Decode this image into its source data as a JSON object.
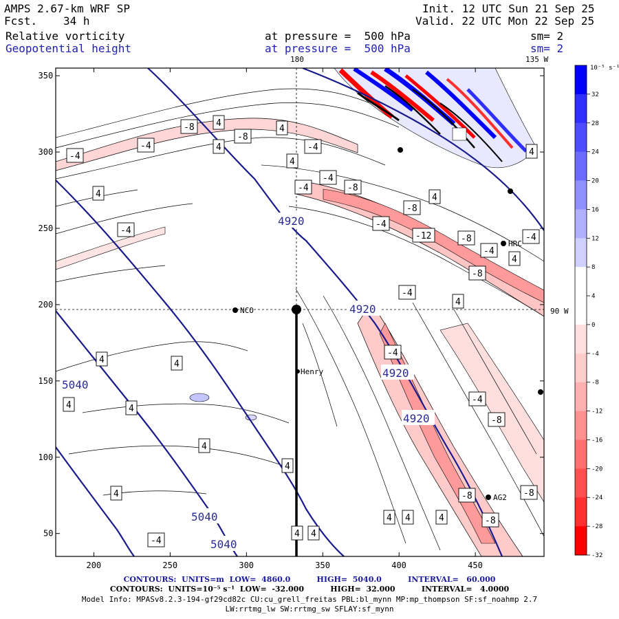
{
  "header": {
    "model": "AMPS 2.67-km WRF SP",
    "fcst_label": "Fcst.",
    "fcst_value": "34 h",
    "init": "Init. 12 UTC Sun 21 Sep 25",
    "valid": "Valid. 22 UTC Mon 22 Sep 25",
    "field1": "Relative vorticity",
    "field2": "Geopotential height",
    "pressure1": "at pressure =  500 hPa",
    "pressure2": "at pressure =  500 hPa",
    "sm1": "sm= 2",
    "sm2": "sm= 2"
  },
  "map": {
    "meridian_top": "180",
    "meridian_top_right": "135 W",
    "parallel_right": "90 W",
    "x_ticks": [
      "200",
      "250",
      "300",
      "350",
      "400",
      "450"
    ],
    "y_ticks": [
      "350",
      "300",
      "250",
      "200",
      "150",
      "100",
      "50"
    ],
    "stations": [
      "NCO",
      "Henry",
      "HRC",
      "AG2"
    ],
    "height_labels": [
      "4920",
      "4920",
      "4920",
      "4920",
      "5040",
      "5040",
      "5040"
    ]
  },
  "colorbar": {
    "unit_label": "10⁻⁵ s⁻¹",
    "ticks": [
      "32",
      "28",
      "24",
      "20",
      "16",
      "12",
      "8",
      "4",
      "0",
      "-4",
      "-8",
      "-12",
      "-16",
      "-20",
      "-24",
      "-28",
      "-32"
    ],
    "colors_top_to_bottom": [
      "#0000ff",
      "#2f2fff",
      "#4d4dff",
      "#6b6bff",
      "#9090ff",
      "#b0b0ff",
      "#d0d0ff",
      "#ffffff",
      "#ffffff",
      "#ffe0e0",
      "#ffcccc",
      "#ffb0b0",
      "#ff9090",
      "#ff7070",
      "#ff5050",
      "#ff3030",
      "#ff0000"
    ]
  },
  "footer": {
    "line1": "CONTOURS:  UNITS=m  LOW=  4860.0          HIGH=  5040.0          INTERVAL=   60.000",
    "line2": "CONTOURS:  UNITS=10⁻⁵ s⁻¹  LOW=  -32.000          HIGH=  32.000          INTERVAL=   4.0000",
    "line3": "Model Info: MPASv8.2.3-194-gf29cd82c CU:cu_grell_freitas PBL:bl_mynn MP:mp_thompson SF:sf_noahmp 2.7",
    "line4": "LW:rrtmg_lw SW:rrtmg_sw SFLAY:sf_mynn"
  }
}
